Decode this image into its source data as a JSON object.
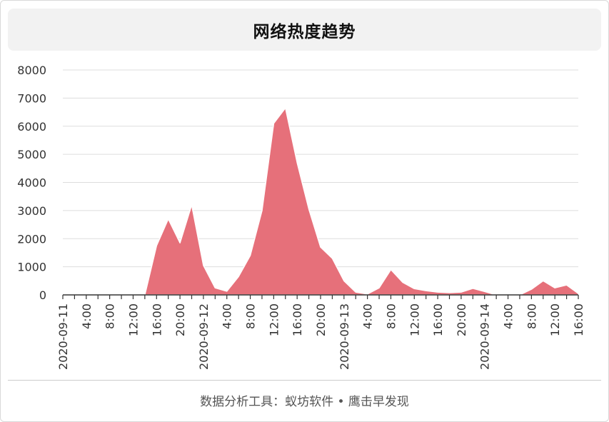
{
  "title": "网络热度趋势",
  "footer": "数据分析工具：蚁坊软件 • 鹰击早发现",
  "colors": {
    "area": "#e6707a",
    "grid": "#dddddd",
    "axis": "#333333",
    "text": "#333333"
  },
  "chart_data": {
    "type": "area",
    "title": "网络热度趋势",
    "xlabel": "",
    "ylabel": "",
    "ylim": [
      0,
      8000
    ],
    "yticks": [
      0,
      1000,
      2000,
      3000,
      4000,
      5000,
      6000,
      7000,
      8000
    ],
    "x_interval_hours": 2,
    "x_tick_labels": [
      "2020-09-11",
      "4:00",
      "8:00",
      "12:00",
      "16:00",
      "20:00",
      "2020-09-12",
      "4:00",
      "8:00",
      "12:00",
      "16:00",
      "20:00",
      "2020-09-13",
      "4:00",
      "8:00",
      "12:00",
      "16:00",
      "20:00",
      "2020-09-14",
      "4:00",
      "8:00",
      "12:00",
      "16:00"
    ],
    "grid": true,
    "legend": "none",
    "series": [
      {
        "x": [
          "2020-09-11 00:00",
          "2020-09-11 02:00",
          "2020-09-11 04:00",
          "2020-09-11 06:00",
          "2020-09-11 08:00",
          "2020-09-11 10:00",
          "2020-09-11 12:00",
          "2020-09-11 14:00",
          "2020-09-11 16:00",
          "2020-09-11 18:00",
          "2020-09-11 20:00",
          "2020-09-11 22:00",
          "2020-09-12 00:00",
          "2020-09-12 02:00",
          "2020-09-12 04:00",
          "2020-09-12 06:00",
          "2020-09-12 08:00",
          "2020-09-12 10:00",
          "2020-09-12 12:00",
          "2020-09-12 14:00",
          "2020-09-12 16:00",
          "2020-09-12 18:00",
          "2020-09-12 20:00",
          "2020-09-12 22:00",
          "2020-09-13 00:00",
          "2020-09-13 02:00",
          "2020-09-13 04:00",
          "2020-09-13 06:00",
          "2020-09-13 08:00",
          "2020-09-13 10:00",
          "2020-09-13 12:00",
          "2020-09-13 14:00",
          "2020-09-13 16:00",
          "2020-09-13 18:00",
          "2020-09-13 20:00",
          "2020-09-13 22:00",
          "2020-09-14 00:00",
          "2020-09-14 02:00",
          "2020-09-14 04:00",
          "2020-09-14 06:00",
          "2020-09-14 08:00",
          "2020-09-14 10:00",
          "2020-09-14 12:00",
          "2020-09-14 14:00",
          "2020-09-14 16:00"
        ],
        "values": [
          0,
          0,
          0,
          0,
          0,
          0,
          0,
          0,
          1750,
          2700,
          1850,
          3200,
          1050,
          250,
          130,
          650,
          1400,
          3000,
          6100,
          6650,
          4700,
          3050,
          1700,
          1300,
          500,
          100,
          30,
          250,
          900,
          450,
          220,
          150,
          100,
          80,
          100,
          230,
          120,
          0,
          0,
          0,
          200,
          500,
          250,
          350,
          50
        ]
      }
    ]
  }
}
